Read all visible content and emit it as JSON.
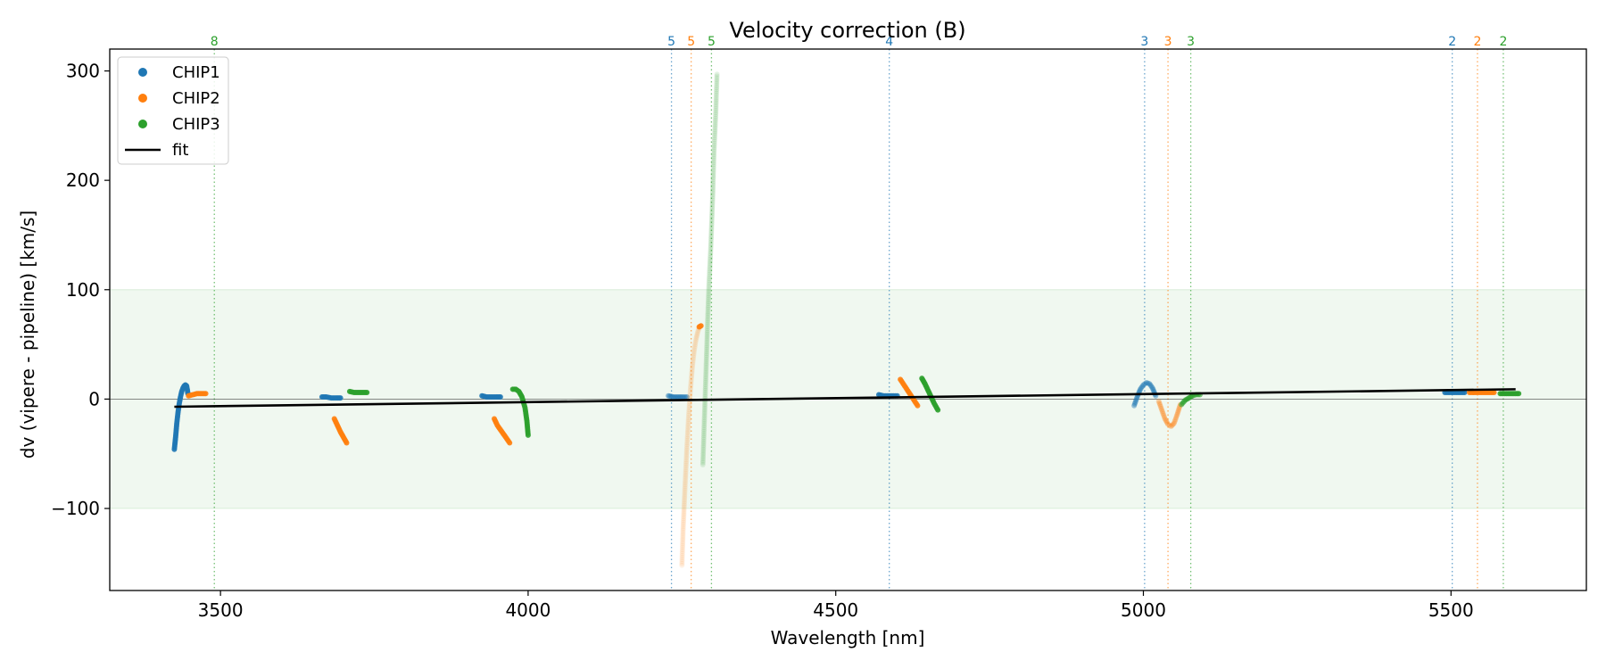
{
  "chart_data": {
    "type": "scatter",
    "title": "Velocity correction (B)",
    "xlabel": "Wavelength [nm]",
    "ylabel": "dv (vipere - pipeline) [km/s]",
    "xlim": [
      3320,
      5720
    ],
    "ylim": [
      -175,
      320
    ],
    "xticks": [
      3500,
      4000,
      4500,
      5000,
      5500
    ],
    "yticks": [
      -100,
      0,
      100,
      200,
      300
    ],
    "xtick_labels": [
      "3500",
      "4000",
      "4500",
      "5000",
      "5500"
    ],
    "ytick_labels": [
      "−100",
      "0",
      "100",
      "200",
      "300"
    ],
    "band": {
      "y": [
        -100,
        100
      ],
      "color": "#2ca02c"
    },
    "zero_line": 0,
    "grid": false,
    "legend_position": "top-left",
    "legend": [
      {
        "label": "CHIP1",
        "marker": "dot",
        "color": "#1f77b4"
      },
      {
        "label": "CHIP2",
        "marker": "dot",
        "color": "#ff7f0e"
      },
      {
        "label": "CHIP3",
        "marker": "dot",
        "color": "#2ca02c"
      },
      {
        "label": "fit",
        "marker": "line",
        "color": "#000000"
      }
    ],
    "fit": {
      "x": [
        3425,
        5605
      ],
      "y": [
        -7,
        9
      ],
      "color": "#000000"
    },
    "order_markers": [
      {
        "x": 3490,
        "label": "8",
        "chip": 3
      },
      {
        "x": 4233,
        "label": "5",
        "chip": 1
      },
      {
        "x": 4265,
        "label": "5",
        "chip": 2
      },
      {
        "x": 4298,
        "label": "5",
        "chip": 3
      },
      {
        "x": 4587,
        "label": "4",
        "chip": 1
      },
      {
        "x": 5002,
        "label": "3",
        "chip": 1
      },
      {
        "x": 5040,
        "label": "3",
        "chip": 2
      },
      {
        "x": 5077,
        "label": "3",
        "chip": 3
      },
      {
        "x": 5502,
        "label": "2",
        "chip": 1
      },
      {
        "x": 5543,
        "label": "2",
        "chip": 2
      },
      {
        "x": 5585,
        "label": "2",
        "chip": 3
      }
    ],
    "series": [
      {
        "name": "CHIP1",
        "color": "#1f77b4",
        "segments": [
          {
            "opacity": 0.9,
            "points": [
              [
                3425,
                -46
              ],
              [
                3427,
                -35
              ],
              [
                3429,
                -22
              ],
              [
                3431,
                -12
              ],
              [
                3433,
                -4
              ],
              [
                3435,
                2
              ],
              [
                3437,
                7
              ],
              [
                3439,
                10
              ],
              [
                3441,
                12
              ],
              [
                3443,
                13
              ],
              [
                3445,
                12
              ],
              [
                3446,
                9
              ],
              [
                3447,
                5
              ]
            ]
          },
          {
            "opacity": 0.9,
            "points": [
              [
                3665,
                2
              ],
              [
                3672,
                2
              ],
              [
                3680,
                1
              ],
              [
                3688,
                1
              ],
              [
                3695,
                1
              ]
            ]
          },
          {
            "opacity": 0.9,
            "points": [
              [
                3925,
                3
              ],
              [
                3932,
                2
              ],
              [
                3940,
                2
              ],
              [
                3948,
                2
              ],
              [
                3955,
                2
              ]
            ]
          },
          {
            "opacity": 0.55,
            "points": [
              [
                4228,
                3
              ],
              [
                4236,
                2
              ],
              [
                4244,
                2
              ],
              [
                4252,
                2
              ],
              [
                4258,
                2
              ]
            ]
          },
          {
            "opacity": 0.9,
            "points": [
              [
                4570,
                4
              ],
              [
                4578,
                3
              ],
              [
                4586,
                3
              ],
              [
                4594,
                3
              ],
              [
                4600,
                3
              ]
            ]
          },
          {
            "opacity": 0.45,
            "points": [
              [
                4985,
                -6
              ],
              [
                4990,
                2
              ],
              [
                4995,
                9
              ],
              [
                5000,
                13
              ],
              [
                5005,
                15
              ],
              [
                5010,
                14
              ],
              [
                5015,
                10
              ],
              [
                5020,
                3
              ]
            ]
          },
          {
            "opacity": 0.9,
            "points": [
              [
                5490,
                6
              ],
              [
                5498,
                6
              ],
              [
                5506,
                6
              ],
              [
                5514,
                6
              ],
              [
                5522,
                6
              ]
            ]
          }
        ]
      },
      {
        "name": "CHIP2",
        "color": "#ff7f0e",
        "segments": [
          {
            "opacity": 0.9,
            "points": [
              [
                3448,
                3
              ],
              [
                3455,
                4
              ],
              [
                3462,
                5
              ],
              [
                3469,
                5
              ],
              [
                3476,
                5
              ]
            ]
          },
          {
            "opacity": 0.9,
            "points": [
              [
                3685,
                -18
              ],
              [
                3690,
                -24
              ],
              [
                3695,
                -30
              ],
              [
                3700,
                -35
              ],
              [
                3705,
                -40
              ]
            ]
          },
          {
            "opacity": 0.9,
            "points": [
              [
                3945,
                -18
              ],
              [
                3950,
                -24
              ],
              [
                3955,
                -28
              ],
              [
                3960,
                -32
              ],
              [
                3965,
                -36
              ],
              [
                3970,
                -40
              ]
            ]
          },
          {
            "opacity": 0.1,
            "points": [
              [
                4250,
                -152
              ],
              [
                4252,
                -118
              ],
              [
                4255,
                -80
              ],
              [
                4258,
                -45
              ],
              [
                4261,
                -15
              ],
              [
                4264,
                10
              ],
              [
                4267,
                30
              ],
              [
                4270,
                45
              ],
              [
                4273,
                55
              ],
              [
                4276,
                62
              ],
              [
                4279,
                66
              ]
            ]
          },
          {
            "opacity": 0.9,
            "points": [
              [
                4278,
                66
              ],
              [
                4281,
                67
              ]
            ]
          },
          {
            "opacity": 0.9,
            "points": [
              [
                4605,
                18
              ],
              [
                4612,
                12
              ],
              [
                4619,
                6
              ],
              [
                4626,
                0
              ],
              [
                4633,
                -6
              ]
            ]
          },
          {
            "opacity": 0.3,
            "points": [
              [
                5025,
                -2
              ],
              [
                5030,
                -10
              ],
              [
                5035,
                -18
              ],
              [
                5040,
                -23
              ],
              [
                5045,
                -25
              ],
              [
                5050,
                -22
              ],
              [
                5055,
                -14
              ],
              [
                5060,
                -5
              ]
            ]
          },
          {
            "opacity": 0.9,
            "points": [
              [
                5530,
                6
              ],
              [
                5540,
                6
              ],
              [
                5550,
                6
              ],
              [
                5560,
                6
              ],
              [
                5570,
                6
              ]
            ]
          }
        ]
      },
      {
        "name": "CHIP3",
        "color": "#2ca02c",
        "segments": [
          {
            "opacity": 0.9,
            "points": [
              [
                3710,
                7
              ],
              [
                3717,
                6
              ],
              [
                3724,
                6
              ],
              [
                3731,
                6
              ],
              [
                3738,
                6
              ]
            ]
          },
          {
            "opacity": 0.9,
            "points": [
              [
                3975,
                9
              ],
              [
                3980,
                9
              ],
              [
                3985,
                7
              ],
              [
                3990,
                2
              ],
              [
                3995,
                -8
              ],
              [
                3998,
                -20
              ],
              [
                4000,
                -33
              ]
            ]
          },
          {
            "opacity": 0.12,
            "points": [
              [
                4284,
                -60
              ],
              [
                4287,
                -10
              ],
              [
                4290,
                40
              ],
              [
                4292,
                75
              ],
              [
                4294,
                105
              ],
              [
                4297,
                140
              ],
              [
                4300,
                185
              ],
              [
                4302,
                225
              ],
              [
                4305,
                262
              ],
              [
                4307,
                297
              ]
            ]
          },
          {
            "opacity": 0.9,
            "points": [
              [
                4640,
                19
              ],
              [
                4645,
                14
              ],
              [
                4650,
                8
              ],
              [
                4655,
                2
              ],
              [
                4660,
                -4
              ],
              [
                4666,
                -10
              ]
            ]
          },
          {
            "opacity": 0.6,
            "points": [
              [
                5062,
                -5
              ],
              [
                5068,
                -1
              ],
              [
                5074,
                1
              ],
              [
                5080,
                3
              ],
              [
                5086,
                4
              ],
              [
                5092,
                4
              ]
            ]
          },
          {
            "opacity": 0.9,
            "points": [
              [
                5580,
                5
              ],
              [
                5590,
                5
              ],
              [
                5600,
                5
              ],
              [
                5610,
                5
              ]
            ]
          }
        ]
      }
    ]
  }
}
